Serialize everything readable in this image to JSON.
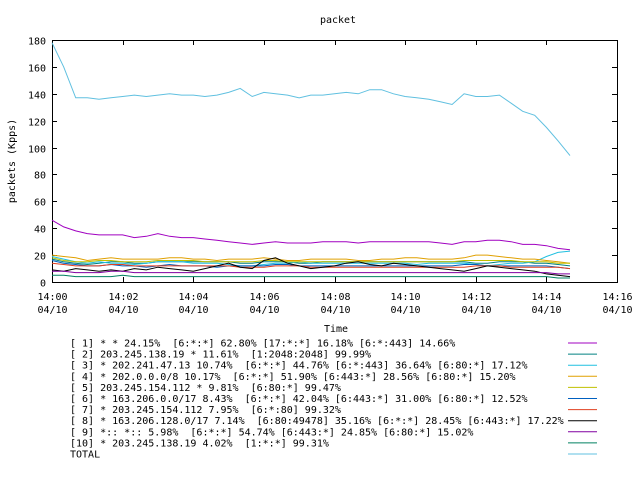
{
  "chart_data": {
    "type": "line",
    "title": "packet",
    "xlabel": "Time",
    "ylabel": "packets (Kpps)",
    "ylim": [
      0,
      180
    ],
    "yticks": [
      0,
      20,
      40,
      60,
      80,
      100,
      120,
      140,
      160,
      180
    ],
    "xlim": [
      0,
      16
    ],
    "xticks": [
      {
        "value": 0,
        "time": "14:00",
        "date": "04/10"
      },
      {
        "value": 2,
        "time": "14:02",
        "date": "04/10"
      },
      {
        "value": 4,
        "time": "14:04",
        "date": "04/10"
      },
      {
        "value": 6,
        "time": "14:06",
        "date": "04/10"
      },
      {
        "value": 8,
        "time": "14:08",
        "date": "04/10"
      },
      {
        "value": 10,
        "time": "14:10",
        "date": "04/10"
      },
      {
        "value": 12,
        "time": "14:12",
        "date": "04/10"
      },
      {
        "value": 14,
        "time": "14:14",
        "date": "04/10"
      },
      {
        "value": 16,
        "time": "14:16",
        "date": "04/10"
      }
    ],
    "x": [
      0,
      0.33,
      0.67,
      1,
      1.33,
      1.67,
      2,
      2.33,
      2.67,
      3,
      3.33,
      3.67,
      4,
      4.33,
      4.67,
      5,
      5.33,
      5.67,
      6,
      6.33,
      6.67,
      7,
      7.33,
      7.67,
      8,
      8.33,
      8.67,
      9,
      9.33,
      9.67,
      10,
      10.33,
      10.67,
      11,
      11.33,
      11.67,
      12,
      12.33,
      12.67,
      13,
      13.33,
      13.67,
      14,
      14.33,
      14.67
    ],
    "series": [
      {
        "name": "[ 1] * * 24.15%  [6:*:*] 62.80% [17:*:*] 16.18% [6:*:443] 14.66%",
        "color": "#a000c0",
        "values": [
          46,
          41,
          38,
          36,
          35,
          35,
          35,
          33,
          34,
          36,
          34,
          33,
          33,
          32,
          31,
          30,
          29,
          28,
          29,
          30,
          29,
          29,
          29,
          30,
          30,
          30,
          29,
          30,
          30,
          30,
          30,
          30,
          30,
          29,
          28,
          30,
          30,
          31,
          31,
          30,
          28,
          28,
          27,
          25,
          24
        ]
      },
      {
        "name": "[ 2] 203.245.138.19 * 11.61%  [1:2048:2048] 99.99%",
        "color": "#008080",
        "values": [
          17,
          15,
          14,
          13,
          14,
          15,
          15,
          14,
          14,
          15,
          15,
          15,
          15,
          15,
          15,
          15,
          14,
          14,
          15,
          15,
          15,
          14,
          14,
          15,
          15,
          15,
          15,
          15,
          15,
          15,
          15,
          15,
          15,
          15,
          15,
          15,
          14,
          14,
          15,
          15,
          15,
          14,
          14,
          13,
          12
        ]
      },
      {
        "name": "[ 3] * 202.241.47.13 10.74%  [6:*:*] 44.76% [6:*:443] 36.64% [6:80:*] 17.12%",
        "color": "#20c0e0",
        "values": [
          19,
          17,
          15,
          14,
          15,
          14,
          14,
          13,
          14,
          15,
          15,
          15,
          14,
          14,
          14,
          13,
          12,
          12,
          13,
          14,
          14,
          15,
          14,
          14,
          14,
          14,
          14,
          14,
          14,
          14,
          14,
          13,
          14,
          14,
          14,
          14,
          13,
          12,
          13,
          14,
          14,
          15,
          19,
          22,
          23
        ]
      },
      {
        "name": "[ 4] * 202.0.0.0/8 10.17%  [6:*:*] 51.90% [6:443:*] 28.56% [6:80:*] 15.20%",
        "color": "#e0a000",
        "values": [
          20,
          19,
          18,
          16,
          17,
          18,
          17,
          17,
          17,
          17,
          18,
          18,
          17,
          17,
          16,
          17,
          17,
          17,
          18,
          17,
          16,
          16,
          17,
          17,
          17,
          17,
          16,
          16,
          17,
          17,
          18,
          18,
          17,
          17,
          17,
          18,
          20,
          20,
          19,
          18,
          17,
          17,
          16,
          15,
          14
        ]
      },
      {
        "name": "[ 5] 203.245.154.112 * 9.81%  [6:80:*] 99.47%",
        "color": "#c0c000",
        "values": [
          18,
          16,
          15,
          15,
          16,
          16,
          15,
          15,
          15,
          16,
          16,
          16,
          16,
          15,
          15,
          15,
          15,
          15,
          16,
          16,
          15,
          15,
          15,
          15,
          15,
          15,
          15,
          15,
          15,
          15,
          15,
          15,
          15,
          15,
          15,
          16,
          16,
          16,
          16,
          16,
          15,
          15,
          15,
          14,
          14
        ]
      },
      {
        "name": "[ 6] * 163.206.0.0/17 8.43%  [6:*:*] 42.04% [6:443:*] 31.00% [6:80:*] 12.52%",
        "color": "#0060c0",
        "values": [
          16,
          14,
          13,
          12,
          12,
          13,
          12,
          12,
          11,
          12,
          13,
          12,
          12,
          12,
          11,
          12,
          12,
          12,
          12,
          13,
          13,
          12,
          12,
          12,
          12,
          12,
          12,
          12,
          12,
          12,
          12,
          12,
          12,
          12,
          12,
          13,
          13,
          12,
          12,
          12,
          12,
          12,
          12,
          11,
          10
        ]
      },
      {
        "name": "[ 7] * 203.245.154.112 7.95%  [6:*:80] 99.32%",
        "color": "#e04020",
        "values": [
          14,
          13,
          12,
          12,
          12,
          13,
          13,
          12,
          12,
          12,
          12,
          12,
          12,
          12,
          12,
          12,
          11,
          11,
          11,
          12,
          12,
          12,
          11,
          11,
          11,
          11,
          11,
          11,
          11,
          11,
          11,
          11,
          11,
          11,
          11,
          11,
          12,
          12,
          12,
          11,
          11,
          11,
          11,
          11,
          10
        ]
      },
      {
        "name": "[ 8] * 163.206.128.0/17 7.14%  [6:80:49478] 35.16% [6:*:*] 28.45% [6:443:*] 17.22%",
        "color": "#000000",
        "values": [
          9,
          8,
          10,
          9,
          8,
          9,
          8,
          10,
          9,
          11,
          10,
          9,
          8,
          10,
          12,
          14,
          11,
          10,
          16,
          18,
          14,
          12,
          10,
          11,
          12,
          14,
          15,
          13,
          12,
          14,
          13,
          12,
          11,
          10,
          9,
          8,
          10,
          12,
          11,
          10,
          9,
          8,
          6,
          5,
          4
        ]
      },
      {
        "name": "[ 9] *:: *:: 5.98%  [6:*:*] 54.74% [6:443:*] 24.85% [6:80:*] 15.02%",
        "color": "#8000a0",
        "values": [
          8,
          8,
          7,
          7,
          7,
          8,
          8,
          7,
          7,
          7,
          7,
          7,
          7,
          7,
          7,
          7,
          7,
          7,
          7,
          7,
          7,
          7,
          7,
          7,
          7,
          7,
          7,
          7,
          7,
          7,
          7,
          7,
          7,
          7,
          7,
          7,
          7,
          7,
          7,
          7,
          7,
          7,
          7,
          6,
          6
        ]
      },
      {
        "name": "[10] * 203.245.138.19 4.02%  [1:*:*] 99.31%",
        "color": "#008060",
        "values": [
          5,
          5,
          4,
          4,
          4,
          4,
          5,
          4,
          4,
          4,
          4,
          4,
          4,
          4,
          4,
          4,
          4,
          4,
          4,
          4,
          4,
          4,
          4,
          4,
          4,
          4,
          4,
          4,
          4,
          4,
          4,
          4,
          4,
          4,
          4,
          4,
          4,
          4,
          4,
          4,
          4,
          4,
          4,
          3,
          3
        ]
      },
      {
        "name": "TOTAL",
        "color": "#60c0e0",
        "values": [
          178,
          160,
          137,
          137,
          136,
          137,
          138,
          139,
          138,
          139,
          140,
          139,
          139,
          138,
          139,
          141,
          144,
          138,
          141,
          140,
          139,
          137,
          139,
          139,
          140,
          141,
          140,
          143,
          143,
          140,
          138,
          137,
          136,
          134,
          132,
          140,
          138,
          138,
          139,
          133,
          127,
          124,
          115,
          105,
          94
        ]
      }
    ]
  }
}
